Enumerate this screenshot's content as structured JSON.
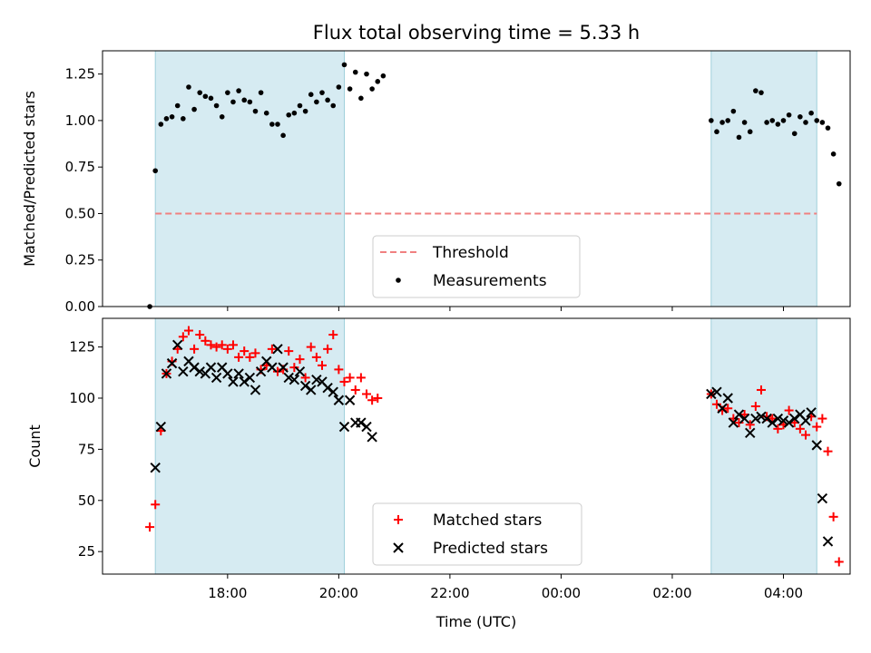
{
  "chart_data": [
    {
      "type": "scatter",
      "title": "Flux total observing time = 5.33 h",
      "xlabel": "",
      "ylabel": "Matched/Predicted stars",
      "ylim": [
        0,
        1.375
      ],
      "yticks": [
        "0.00",
        "0.25",
        "0.50",
        "0.75",
        "1.00",
        "1.25"
      ],
      "x_axis": "time_utc",
      "shaded_intervals": [
        [
          "16:42",
          "20:06"
        ],
        [
          "02:42",
          "04:36"
        ]
      ],
      "threshold": {
        "name": "Threshold",
        "value": 0.5,
        "color": "#f08080",
        "style": "dashed"
      },
      "series": [
        {
          "name": "Measurements",
          "color": "#000000",
          "marker": "dot",
          "points": [
            [
              "16:36",
              0.0
            ],
            [
              "16:42",
              0.73
            ],
            [
              "16:48",
              0.98
            ],
            [
              "16:54",
              1.01
            ],
            [
              "17:00",
              1.02
            ],
            [
              "17:06",
              1.08
            ],
            [
              "17:12",
              1.01
            ],
            [
              "17:18",
              1.18
            ],
            [
              "17:24",
              1.06
            ],
            [
              "17:30",
              1.15
            ],
            [
              "17:36",
              1.13
            ],
            [
              "17:42",
              1.12
            ],
            [
              "17:48",
              1.08
            ],
            [
              "17:54",
              1.02
            ],
            [
              "18:00",
              1.15
            ],
            [
              "18:06",
              1.1
            ],
            [
              "18:12",
              1.16
            ],
            [
              "18:18",
              1.11
            ],
            [
              "18:24",
              1.1
            ],
            [
              "18:30",
              1.05
            ],
            [
              "18:36",
              1.15
            ],
            [
              "18:42",
              1.04
            ],
            [
              "18:48",
              0.98
            ],
            [
              "18:54",
              0.98
            ],
            [
              "19:00",
              0.92
            ],
            [
              "19:06",
              1.03
            ],
            [
              "19:12",
              1.04
            ],
            [
              "19:18",
              1.08
            ],
            [
              "19:24",
              1.05
            ],
            [
              "19:30",
              1.14
            ],
            [
              "19:36",
              1.1
            ],
            [
              "19:42",
              1.15
            ],
            [
              "19:48",
              1.11
            ],
            [
              "19:54",
              1.08
            ],
            [
              "20:00",
              1.18
            ],
            [
              "20:06",
              1.3
            ],
            [
              "20:12",
              1.17
            ],
            [
              "20:18",
              1.26
            ],
            [
              "20:24",
              1.12
            ],
            [
              "20:30",
              1.25
            ],
            [
              "20:36",
              1.17
            ],
            [
              "20:42",
              1.21
            ],
            [
              "20:48",
              1.24
            ],
            [
              "02:42",
              1.0
            ],
            [
              "02:48",
              0.94
            ],
            [
              "02:54",
              0.99
            ],
            [
              "03:00",
              1.0
            ],
            [
              "03:06",
              1.05
            ],
            [
              "03:12",
              0.91
            ],
            [
              "03:18",
              0.99
            ],
            [
              "03:24",
              0.94
            ],
            [
              "03:30",
              1.16
            ],
            [
              "03:36",
              1.15
            ],
            [
              "03:42",
              0.99
            ],
            [
              "03:48",
              1.0
            ],
            [
              "03:54",
              0.98
            ],
            [
              "04:00",
              1.0
            ],
            [
              "04:06",
              1.03
            ],
            [
              "04:12",
              0.93
            ],
            [
              "04:18",
              1.02
            ],
            [
              "04:24",
              0.99
            ],
            [
              "04:30",
              1.04
            ],
            [
              "04:36",
              1.0
            ],
            [
              "04:42",
              0.99
            ],
            [
              "04:48",
              0.96
            ],
            [
              "04:54",
              0.82
            ],
            [
              "05:00",
              0.66
            ]
          ]
        }
      ],
      "legend": {
        "placement": "lower-center",
        "entries": [
          "Threshold",
          "Measurements"
        ]
      }
    },
    {
      "type": "scatter",
      "title": "",
      "xlabel": "Time (UTC)",
      "ylabel": "Count",
      "ylim": [
        14,
        139
      ],
      "yticks": [
        "25",
        "50",
        "75",
        "100",
        "125"
      ],
      "xticks": [
        "18:00",
        "20:00",
        "22:00",
        "00:00",
        "02:00",
        "04:00"
      ],
      "x_axis": "time_utc",
      "shaded_intervals": [
        [
          "16:42",
          "20:06"
        ],
        [
          "02:42",
          "04:36"
        ]
      ],
      "series": [
        {
          "name": "Matched stars",
          "color": "#ff0000",
          "marker": "plus",
          "points": [
            [
              "16:36",
              37
            ],
            [
              "16:42",
              48
            ],
            [
              "16:48",
              84
            ],
            [
              "16:54",
              112
            ],
            [
              "17:00",
              118
            ],
            [
              "17:06",
              124
            ],
            [
              "17:12",
              130
            ],
            [
              "17:18",
              133
            ],
            [
              "17:24",
              124
            ],
            [
              "17:30",
              131
            ],
            [
              "17:36",
              128
            ],
            [
              "17:42",
              126
            ],
            [
              "17:48",
              125
            ],
            [
              "17:54",
              126
            ],
            [
              "18:00",
              124
            ],
            [
              "18:06",
              126
            ],
            [
              "18:12",
              120
            ],
            [
              "18:18",
              123
            ],
            [
              "18:24",
              120
            ],
            [
              "18:30",
              122
            ],
            [
              "18:36",
              114
            ],
            [
              "18:42",
              116
            ],
            [
              "18:48",
              124
            ],
            [
              "18:54",
              113
            ],
            [
              "19:00",
              114
            ],
            [
              "19:06",
              123
            ],
            [
              "19:12",
              115
            ],
            [
              "19:18",
              119
            ],
            [
              "19:24",
              110
            ],
            [
              "19:30",
              125
            ],
            [
              "19:36",
              120
            ],
            [
              "19:42",
              116
            ],
            [
              "19:48",
              124
            ],
            [
              "19:54",
              131
            ],
            [
              "20:00",
              114
            ],
            [
              "20:06",
              108
            ],
            [
              "20:12",
              110
            ],
            [
              "20:18",
              104
            ],
            [
              "20:24",
              110
            ],
            [
              "20:30",
              102
            ],
            [
              "20:36",
              99
            ],
            [
              "20:42",
              100
            ],
            [
              "02:42",
              102
            ],
            [
              "02:48",
              97
            ],
            [
              "02:54",
              94
            ],
            [
              "03:00",
              95
            ],
            [
              "03:06",
              90
            ],
            [
              "03:12",
              88
            ],
            [
              "03:18",
              92
            ],
            [
              "03:24",
              87
            ],
            [
              "03:30",
              96
            ],
            [
              "03:36",
              104
            ],
            [
              "03:42",
              91
            ],
            [
              "03:48",
              90
            ],
            [
              "03:54",
              85
            ],
            [
              "04:00",
              87
            ],
            [
              "04:06",
              94
            ],
            [
              "04:12",
              88
            ],
            [
              "04:18",
              85
            ],
            [
              "04:24",
              82
            ],
            [
              "04:30",
              91
            ],
            [
              "04:36",
              86
            ],
            [
              "04:42",
              90
            ],
            [
              "04:48",
              74
            ],
            [
              "04:54",
              42
            ],
            [
              "05:00",
              20
            ]
          ]
        },
        {
          "name": "Predicted stars",
          "color": "#000000",
          "marker": "x",
          "points": [
            [
              "16:42",
              66
            ],
            [
              "16:48",
              86
            ],
            [
              "16:54",
              112
            ],
            [
              "17:00",
              117
            ],
            [
              "17:06",
              126
            ],
            [
              "17:12",
              113
            ],
            [
              "17:18",
              118
            ],
            [
              "17:24",
              115
            ],
            [
              "17:30",
              113
            ],
            [
              "17:36",
              112
            ],
            [
              "17:42",
              115
            ],
            [
              "17:48",
              110
            ],
            [
              "17:54",
              115
            ],
            [
              "18:00",
              112
            ],
            [
              "18:06",
              108
            ],
            [
              "18:12",
              112
            ],
            [
              "18:18",
              108
            ],
            [
              "18:24",
              110
            ],
            [
              "18:30",
              104
            ],
            [
              "18:36",
              113
            ],
            [
              "18:42",
              118
            ],
            [
              "18:48",
              115
            ],
            [
              "18:54",
              124
            ],
            [
              "19:00",
              115
            ],
            [
              "19:06",
              110
            ],
            [
              "19:12",
              109
            ],
            [
              "19:18",
              113
            ],
            [
              "19:24",
              106
            ],
            [
              "19:30",
              104
            ],
            [
              "19:36",
              109
            ],
            [
              "19:42",
              108
            ],
            [
              "19:48",
              105
            ],
            [
              "19:54",
              103
            ],
            [
              "20:00",
              99
            ],
            [
              "20:06",
              86
            ],
            [
              "20:12",
              99
            ],
            [
              "20:18",
              88
            ],
            [
              "20:24",
              88
            ],
            [
              "20:30",
              86
            ],
            [
              "20:36",
              81
            ],
            [
              "02:42",
              102
            ],
            [
              "02:48",
              103
            ],
            [
              "02:54",
              95
            ],
            [
              "03:00",
              100
            ],
            [
              "03:06",
              88
            ],
            [
              "03:12",
              92
            ],
            [
              "03:18",
              90
            ],
            [
              "03:24",
              83
            ],
            [
              "03:30",
              90
            ],
            [
              "03:36",
              91
            ],
            [
              "03:42",
              90
            ],
            [
              "03:48",
              88
            ],
            [
              "03:54",
              90
            ],
            [
              "04:00",
              89
            ],
            [
              "04:06",
              88
            ],
            [
              "04:12",
              90
            ],
            [
              "04:18",
              92
            ],
            [
              "04:24",
              89
            ],
            [
              "04:30",
              93
            ],
            [
              "04:36",
              77
            ],
            [
              "04:42",
              51
            ],
            [
              "04:48",
              30
            ]
          ]
        }
      ],
      "legend": {
        "placement": "lower-center",
        "entries": [
          "Matched stars",
          "Predicted stars"
        ]
      }
    }
  ]
}
